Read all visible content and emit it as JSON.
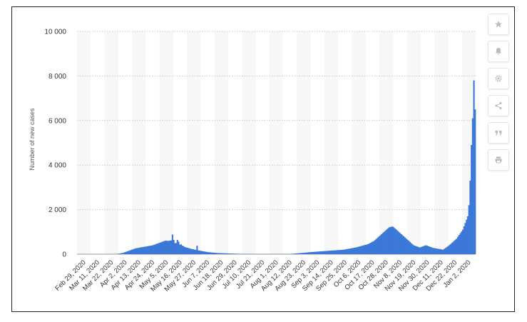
{
  "toolbar": {
    "buttons": [
      {
        "name": "favorite-button",
        "icon": "star-icon"
      },
      {
        "name": "notification-button",
        "icon": "bell-icon"
      },
      {
        "name": "settings-button",
        "icon": "gear-icon"
      },
      {
        "name": "share-button",
        "icon": "share-icon"
      },
      {
        "name": "cite-button",
        "icon": "quote-icon"
      },
      {
        "name": "print-button",
        "icon": "print-icon"
      }
    ]
  },
  "chart_data": {
    "type": "bar",
    "ylabel": "Number of new cases",
    "ylim": [
      0,
      10000
    ],
    "y_ticks": [
      0,
      2000,
      4000,
      6000,
      8000,
      10000
    ],
    "y_tick_labels": [
      "0",
      "2 000",
      "4 000",
      "6 000",
      "8 000",
      "10 000"
    ],
    "x_tick_labels": [
      "Feb 29, 2020",
      "Mar 11, 2020",
      "Mar 22, 2020",
      "Apr 2, 2020",
      "Apr 13, 2020",
      "Apr 24, 2020",
      "May 5, 2020",
      "May 16, 2020",
      "May 27, 2020",
      "Jun 7, 2020",
      "Jun 18, 2020",
      "Jun 29, 2020",
      "Jul 10, 2020",
      "Jul 21, 2020",
      "Aug 1, 2020",
      "Aug 12, 2020",
      "Aug 23, 2020",
      "Sep 3, 2020",
      "Sep 14, 2020",
      "Sep 25, 2020",
      "Oct 6, 2020",
      "Oct 17, 2020",
      "Oct 28, 2020",
      "Nov 8, 2020",
      "Nov 19, 2020",
      "Nov 30, 2020",
      "Dec 11, 2020",
      "Dec 22, 2020",
      "Jan 2, 2020"
    ],
    "grid": true,
    "bar_color": "#3c78d8",
    "series": [
      {
        "values": [
          0,
          0,
          0,
          0,
          0,
          0,
          0,
          0,
          0,
          0,
          0,
          0,
          0,
          0,
          0,
          0,
          0,
          0,
          0,
          0,
          0,
          0,
          0,
          0,
          0,
          0,
          0,
          0,
          0,
          0,
          0,
          0,
          10,
          20,
          30,
          40,
          50,
          60,
          80,
          100,
          120,
          140,
          160,
          180,
          200,
          220,
          240,
          260,
          270,
          280,
          290,
          300,
          310,
          320,
          330,
          340,
          350,
          360,
          370,
          380,
          390,
          400,
          420,
          440,
          460,
          480,
          500,
          520,
          540,
          560,
          580,
          600,
          610,
          590,
          600,
          610,
          620,
          880,
          640,
          500,
          500,
          640,
          560,
          430,
          440,
          380,
          360,
          320,
          300,
          290,
          270,
          260,
          240,
          230,
          220,
          200,
          190,
          380,
          170,
          160,
          150,
          140,
          130,
          120,
          110,
          100,
          90,
          85,
          80,
          75,
          70,
          65,
          60,
          55,
          50,
          48,
          46,
          44,
          42,
          40,
          38,
          36,
          34,
          32,
          30,
          28,
          26,
          24,
          22,
          20,
          18,
          16,
          15,
          14,
          13,
          12,
          11,
          10,
          10,
          9,
          9,
          8,
          8,
          7,
          7,
          6,
          6,
          6,
          5,
          5,
          5,
          5,
          5,
          5,
          5,
          5,
          5,
          5,
          5,
          5,
          5,
          5,
          5,
          5,
          5,
          5,
          5,
          5,
          5,
          5,
          5,
          5,
          5,
          10,
          15,
          20,
          25,
          30,
          35,
          40,
          45,
          50,
          55,
          60,
          65,
          70,
          75,
          80,
          85,
          90,
          95,
          100,
          104,
          108,
          112,
          116,
          120,
          124,
          128,
          132,
          136,
          140,
          144,
          148,
          152,
          156,
          160,
          164,
          168,
          172,
          176,
          180,
          184,
          188,
          192,
          196,
          200,
          210,
          220,
          230,
          240,
          250,
          260,
          270,
          280,
          290,
          300,
          315,
          330,
          345,
          360,
          375,
          390,
          405,
          420,
          435,
          450,
          480,
          510,
          540,
          570,
          600,
          650,
          700,
          750,
          800,
          850,
          900,
          950,
          1000,
          1050,
          1100,
          1150,
          1200,
          1220,
          1230,
          1240,
          1200,
          1150,
          1100,
          1050,
          1000,
          950,
          900,
          850,
          800,
          750,
          700,
          650,
          600,
          550,
          500,
          450,
          400,
          380,
          360,
          340,
          320,
          300,
          320,
          340,
          360,
          380,
          400,
          380,
          360,
          340,
          320,
          300,
          280,
          270,
          260,
          250,
          240,
          230,
          220,
          210,
          200,
          240,
          280,
          320,
          360,
          400,
          450,
          500,
          550,
          600,
          650,
          700,
          780,
          860,
          940,
          1020,
          1100,
          1250,
          1400,
          1550,
          1700,
          2200,
          3300,
          4900,
          6100,
          7800,
          6500
        ]
      }
    ]
  }
}
